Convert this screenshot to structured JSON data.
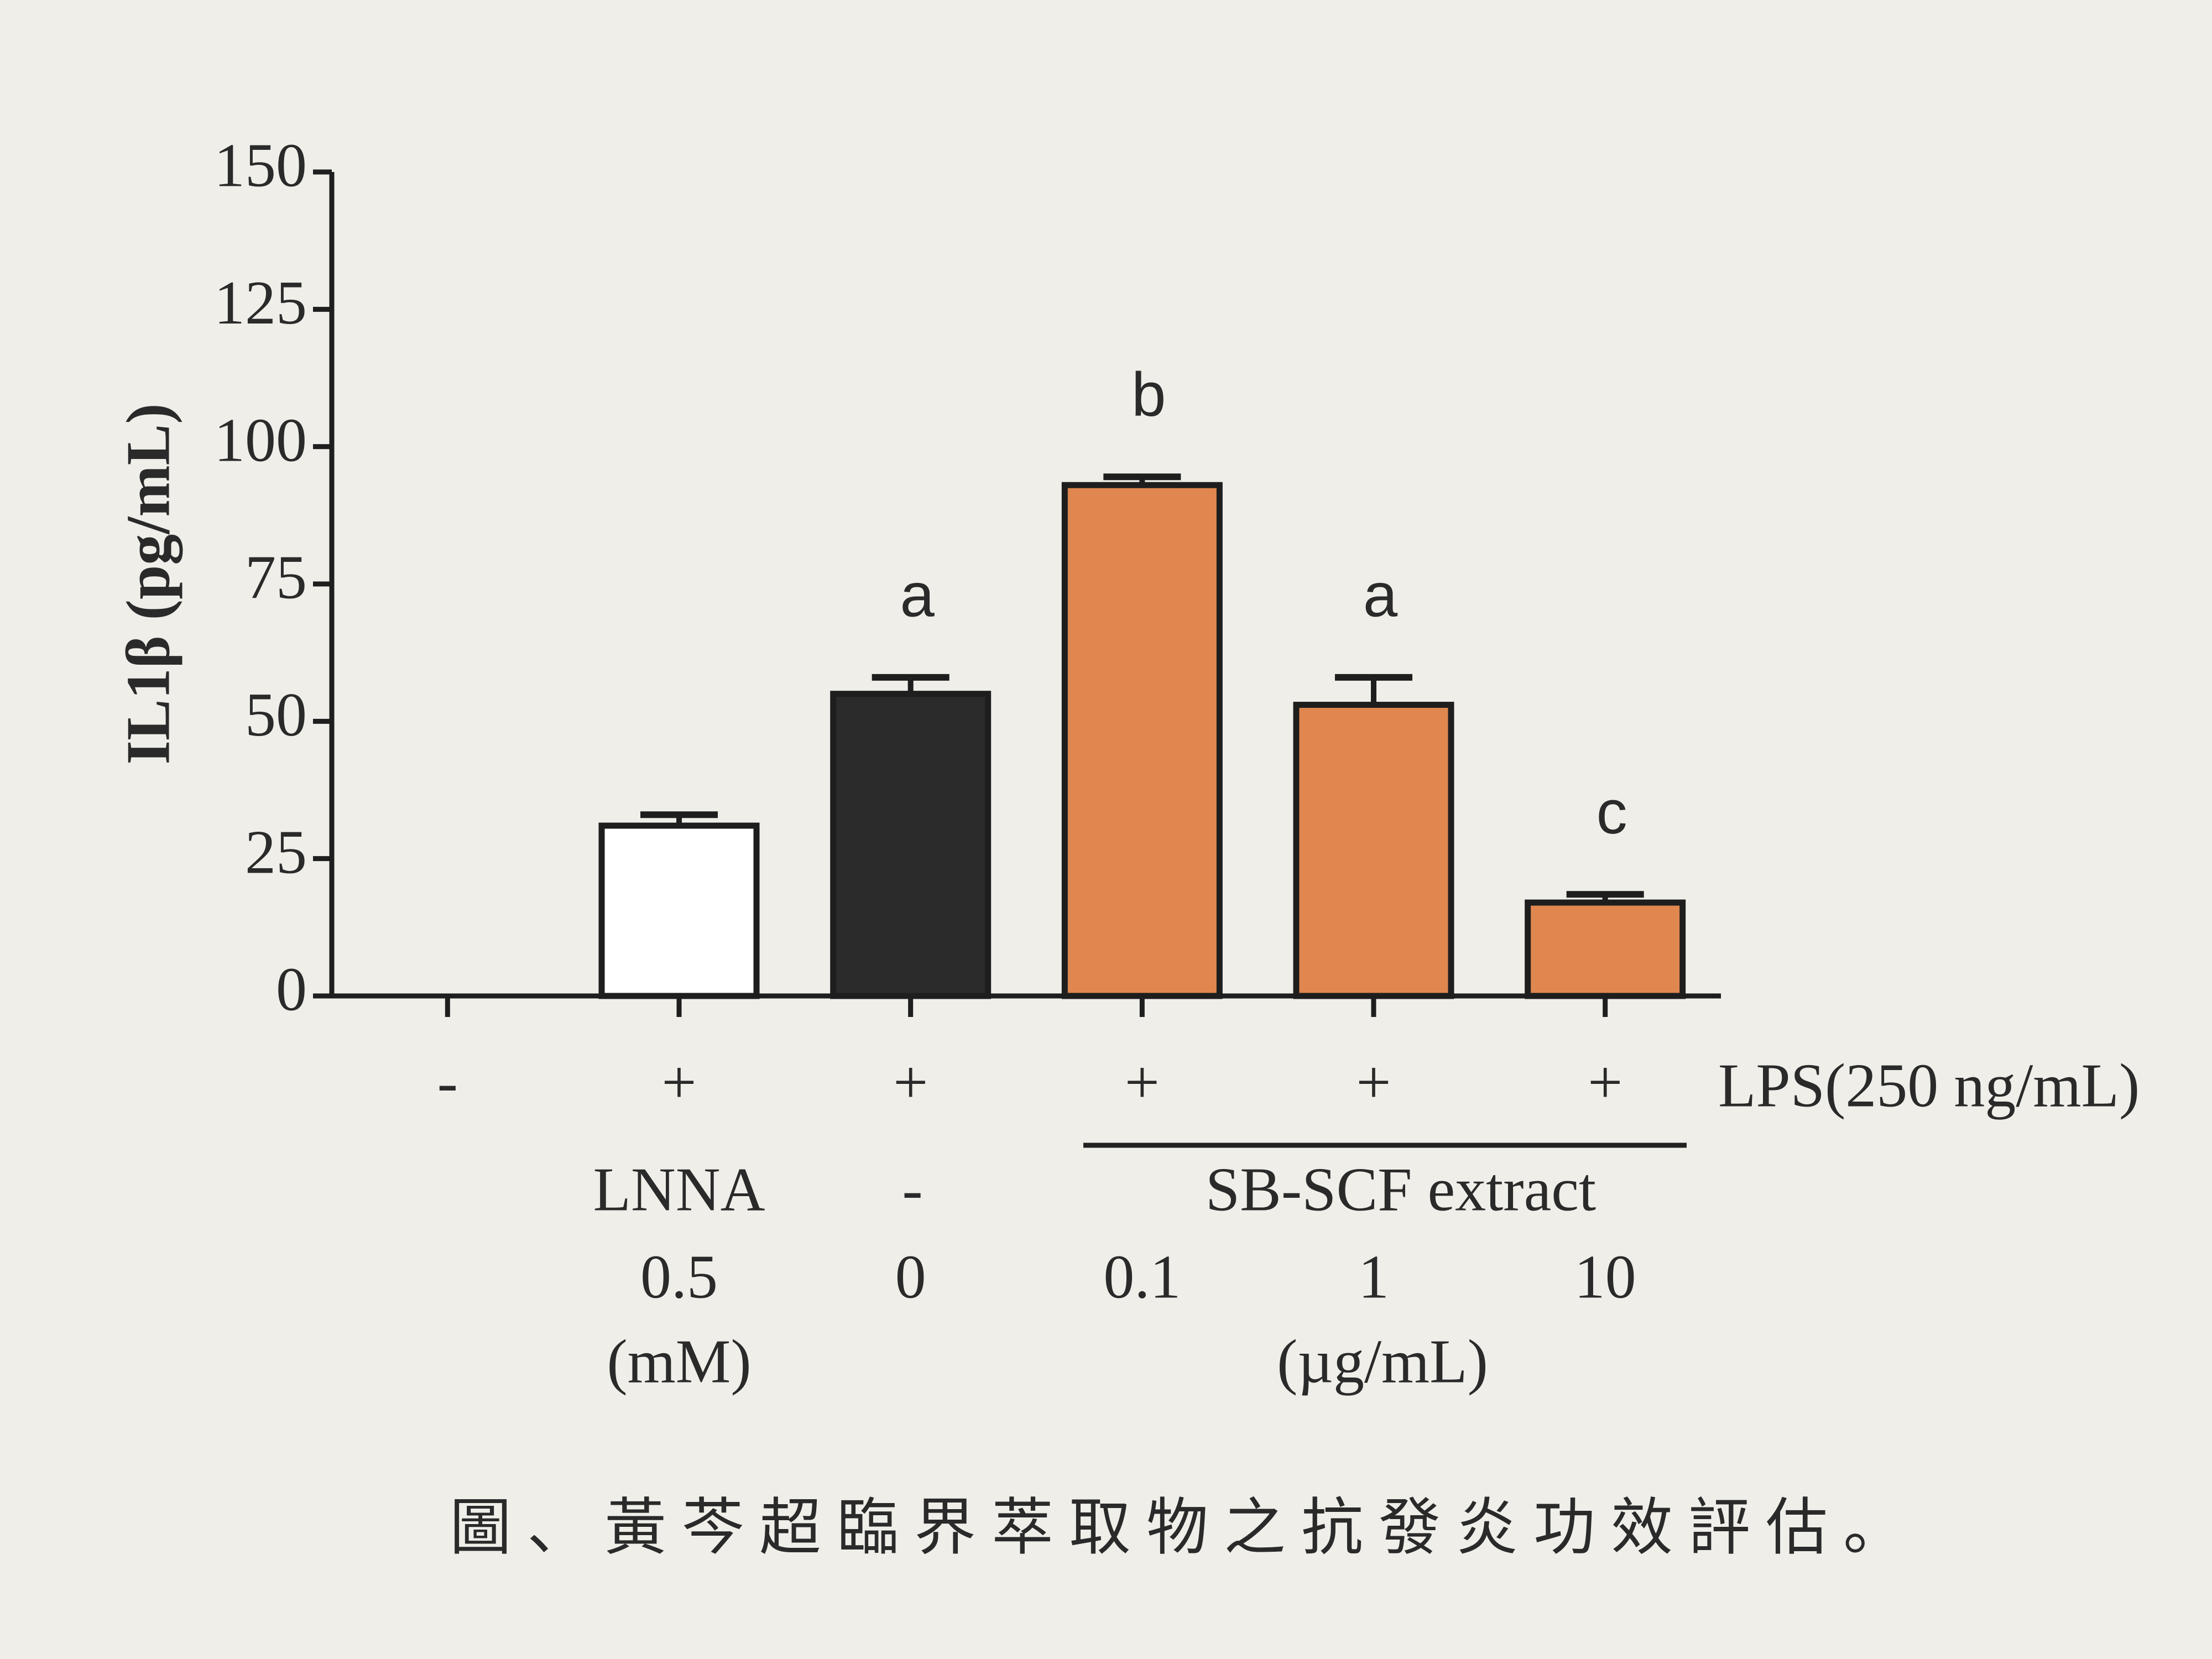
{
  "chart_data": {
    "type": "bar",
    "ylabel": "IL1β (pg/mL)",
    "ylim": [
      0,
      150
    ],
    "yticks": [
      0,
      25,
      50,
      75,
      100,
      125,
      150
    ],
    "values": [
      null,
      31,
      55,
      93,
      53,
      17
    ],
    "errors": [
      null,
      2,
      3,
      1.5,
      5,
      1.5
    ],
    "colors": [
      "#ffffff",
      "#ffffff",
      "#2b2b2b",
      "#e0874f",
      "#e0874f",
      "#e0874f"
    ],
    "annotations": [
      null,
      null,
      "a",
      "b",
      "a",
      "c"
    ],
    "lps_signs": [
      "-",
      "+",
      "+",
      "+",
      "+",
      "+"
    ],
    "lps_label": "LPS(250 ng/mL)",
    "lnna_label": "LNNA",
    "control_sign": "-",
    "extract_label": "SB-SCF extract",
    "doses": [
      null,
      "0.5",
      "0",
      "0.1",
      "1",
      "10"
    ],
    "lnna_unit": "(mM)",
    "extract_unit": "(µg/mL)"
  },
  "caption": "圖、黃芩超臨界萃取物之抗發炎功效評估。"
}
